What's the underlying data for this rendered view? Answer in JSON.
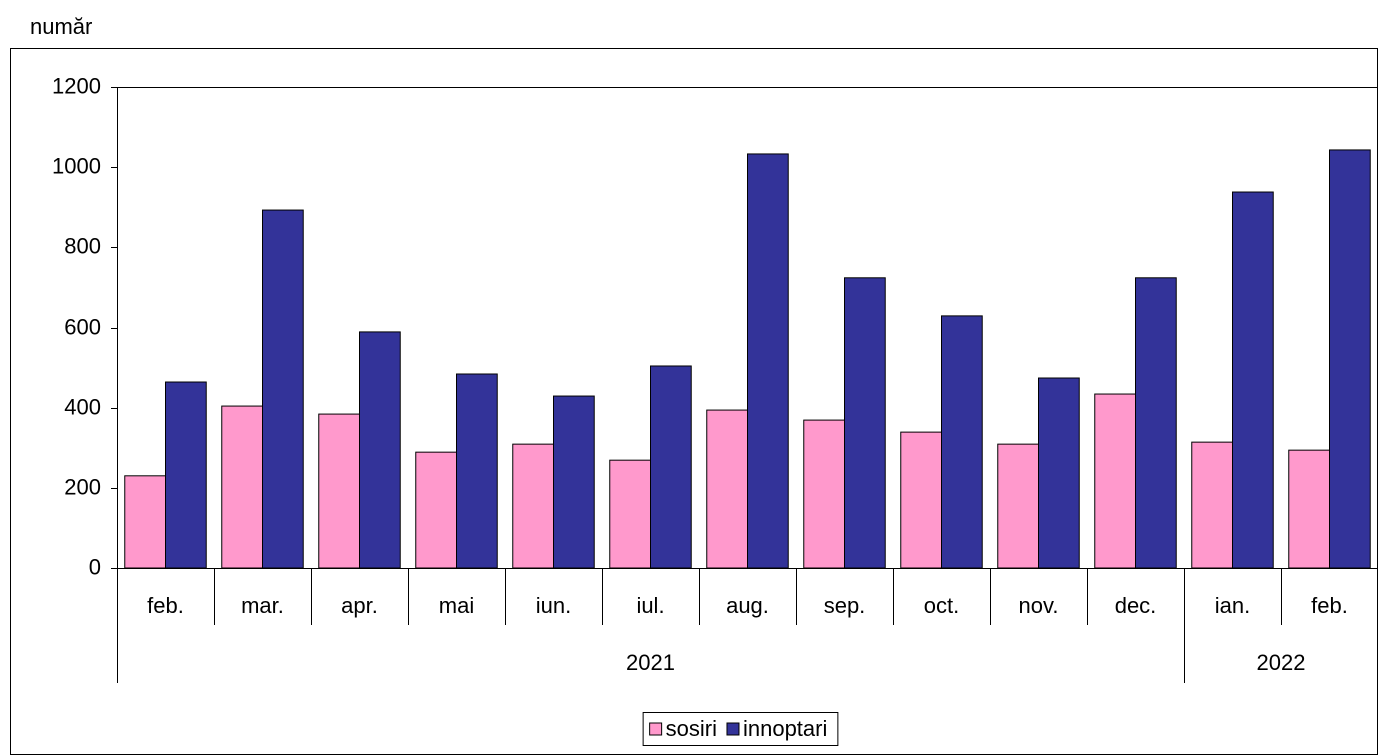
{
  "chart_data": {
    "type": "bar",
    "y_label": "număr",
    "category_groups": [
      {
        "label": "2021",
        "categories": [
          "feb.",
          "mar.",
          "apr.",
          "mai",
          "iun.",
          "iul.",
          "aug.",
          "sep.",
          "oct.",
          "nov.",
          "dec."
        ]
      },
      {
        "label": "2022",
        "categories": [
          "ian.",
          "feb."
        ]
      }
    ],
    "series": [
      {
        "name": "sosiri",
        "color": "#ff99cc",
        "values": [
          230,
          404,
          384,
          289,
          309,
          269,
          394,
          369,
          339,
          309,
          434,
          314,
          294
        ]
      },
      {
        "name": "innoptari",
        "color": "#333399",
        "values": [
          464,
          893,
          589,
          484,
          429,
          504,
          1033,
          724,
          629,
          474,
          724,
          938,
          1043
        ]
      }
    ],
    "ylim": [
      0,
      1200
    ],
    "yticks": [
      0,
      200,
      400,
      600,
      800,
      1000,
      1200
    ],
    "grid": false,
    "legend": "bottom"
  }
}
